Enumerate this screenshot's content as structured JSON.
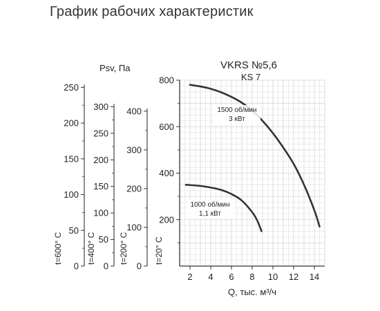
{
  "page": {
    "title": "График рабочих характеристик"
  },
  "chart_data": {
    "type": "line",
    "title": "VKRS №5,6",
    "subtitle": "KS 7",
    "xlabel": "Q, тыс. м³/ч",
    "ylabel": "Psv, Па",
    "xlim": [
      1,
      15
    ],
    "ylim": [
      0,
      800
    ],
    "x_ticks": [
      2,
      4,
      6,
      8,
      10,
      12,
      14
    ],
    "y_ticks": [
      200,
      400,
      600,
      800
    ],
    "grid": true,
    "temperature_scales": [
      {
        "label": "t=600° C",
        "max": 260,
        "ticks": [
          0,
          50,
          100,
          150,
          200,
          250
        ]
      },
      {
        "label": "t=400° C",
        "max": 350,
        "ticks": [
          0,
          50,
          100,
          150,
          200,
          250,
          300
        ]
      },
      {
        "label": "t=200° C",
        "max": 480,
        "ticks": [
          0,
          100,
          200,
          300,
          400
        ]
      },
      {
        "label": "t=20° C",
        "max": 800,
        "ticks": [
          0
        ]
      }
    ],
    "series": [
      {
        "name": "1500 об/мин 3 кВт",
        "label_line1": "1500 об/мин",
        "label_line2": "3 кВт",
        "x": [
          2.0,
          3.0,
          4.0,
          5.0,
          6.0,
          7.0,
          8.0,
          9.0,
          10.0,
          11.0,
          12.0,
          13.0,
          14.0,
          14.5
        ],
        "y": [
          780,
          773,
          763,
          748,
          728,
          703,
          670,
          625,
          572,
          510,
          440,
          350,
          240,
          170
        ]
      },
      {
        "name": "1000 об/мин 1,1 кВт",
        "label_line1": "1000 об/мин",
        "label_line2": "1,1 кВт",
        "x": [
          1.6,
          3.0,
          4.0,
          5.0,
          6.0,
          7.0,
          8.0,
          8.5,
          8.9
        ],
        "y": [
          350,
          345,
          338,
          328,
          310,
          282,
          232,
          195,
          150
        ]
      }
    ]
  }
}
